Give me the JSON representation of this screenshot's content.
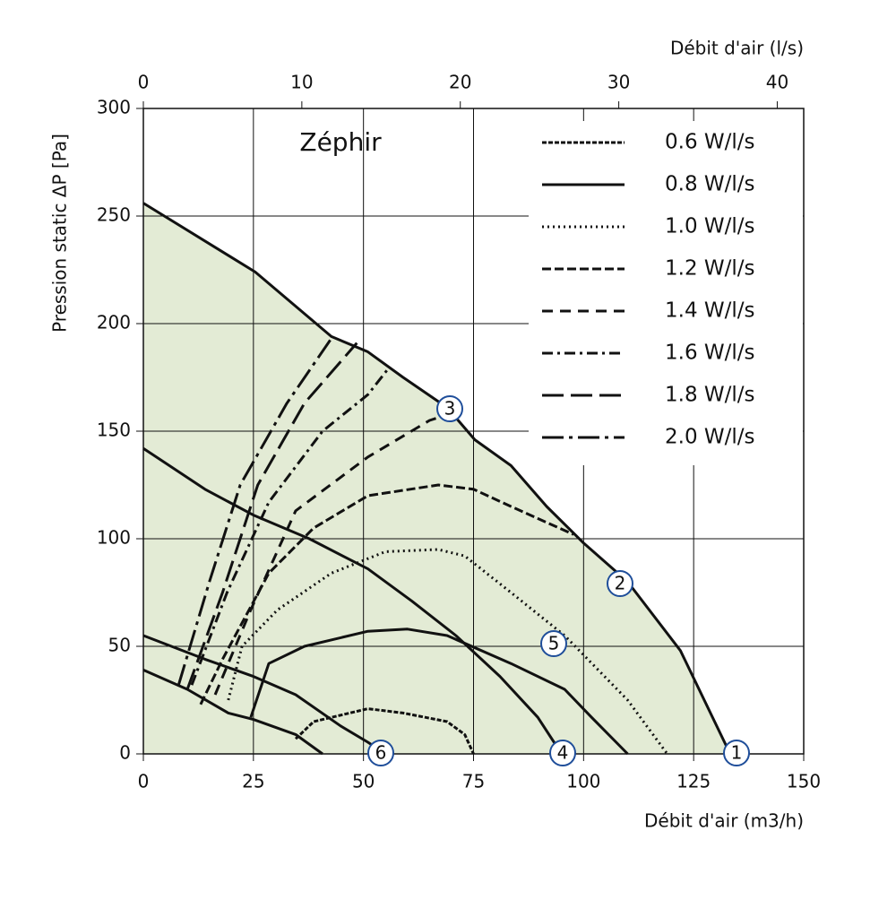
{
  "chart_data": {
    "type": "line",
    "title": "Zéphir",
    "xlabel": "Débit d'air (m3/h)",
    "x2label": "Débit d'air (l/s)",
    "ylabel": "Pression static  ΔP [Pa]",
    "xlim": [
      0,
      150
    ],
    "xticks": [
      0,
      25,
      50,
      75,
      100,
      125,
      150
    ],
    "x2lim": [
      0,
      41.67
    ],
    "x2ticks": [
      0,
      10,
      20,
      30,
      40
    ],
    "ylim": [
      0,
      300
    ],
    "yticks": [
      0,
      50,
      100,
      150,
      200,
      250,
      300
    ],
    "grid": true,
    "fill_color": "#e3ebd5",
    "legend": "upper right",
    "fan_curves": [
      {
        "color": "#111111",
        "x": [
          0,
          25.4,
          42.7,
          50.9,
          59,
          69,
          75.3,
          83.5,
          91.6,
          100,
          110,
          122,
          133.3
        ],
        "values": [
          256,
          224,
          194,
          187,
          175,
          161,
          146,
          134,
          115,
          98,
          80,
          48,
          0
        ]
      },
      {
        "color": "#111111",
        "x": [
          0,
          14,
          25,
          37.7,
          51,
          61,
          71,
          81,
          89.6,
          95
        ],
        "values": [
          142,
          123,
          111,
          100,
          86,
          71,
          55,
          36,
          17,
          0
        ]
      },
      {
        "color": "#111111",
        "x": [
          0,
          14,
          25,
          34.6,
          44.8,
          51,
          55
        ],
        "values": [
          55,
          44,
          36,
          27.5,
          13,
          5.4,
          0
        ]
      },
      {
        "color": "#111111",
        "x": [
          0,
          10,
          19.3,
          25,
          34.6,
          40.7
        ],
        "values": [
          39,
          30,
          19,
          16,
          9,
          0
        ]
      }
    ],
    "series": [
      {
        "name": "0.6 W/l/s",
        "color": "#111111",
        "dash": "5,2",
        "x": [
          34.6,
          38.7,
          51,
          59,
          69,
          73,
          75
        ],
        "values": [
          7,
          15,
          21,
          19,
          15,
          9,
          0
        ]
      },
      {
        "name": "0.8 W/l/s",
        "color": "#111111",
        "x": [
          24.4,
          28.5,
          36.6,
          51,
          60,
          69,
          83.5,
          95.7,
          101.8,
          110
        ],
        "values": [
          17,
          42,
          50,
          57,
          58,
          55,
          42,
          30,
          17,
          0
        ]
      },
      {
        "name": "1.0 W/l/s",
        "color": "#111111",
        "dash": "2,4",
        "x": [
          19.3,
          22.4,
          30.5,
          42.7,
          55,
          67,
          73,
          83.5,
          95.7,
          110,
          119
        ],
        "values": [
          25,
          50,
          67,
          84,
          94,
          95,
          92,
          75,
          55,
          25,
          0
        ]
      },
      {
        "name": "1.2 W/l/s",
        "color": "#111111",
        "dash": "10,4",
        "x": [
          13,
          18,
          28.5,
          38.7,
          51,
          67,
          75,
          83.5,
          97.7
        ],
        "values": [
          23,
          44,
          84,
          105,
          120,
          125,
          123,
          115,
          102
        ]
      },
      {
        "name": "1.4 W/l/s",
        "color": "#111111",
        "dash": "12,8",
        "x": [
          16.3,
          24.4,
          34.6,
          51,
          65,
          69.6
        ],
        "values": [
          27.5,
          67,
          113,
          138,
          155,
          158
        ]
      },
      {
        "name": "1.6 W/l/s",
        "color": "#111111",
        "dash": "12,5,3,5",
        "x": [
          11,
          19,
          28.5,
          40.7,
          51,
          56
        ],
        "values": [
          32,
          75,
          117,
          150,
          167,
          180
        ]
      },
      {
        "name": "1.8 W/l/s",
        "color": "#111111",
        "dash": "24,8",
        "x": [
          10,
          18,
          26,
          36.6,
          48.5
        ],
        "values": [
          30,
          75,
          125,
          163,
          191
        ]
      },
      {
        "name": "2.0 W/l/s",
        "color": "#111111",
        "dash": "24,6,4,6",
        "x": [
          8,
          15,
          22,
          32.6,
          43
        ],
        "values": [
          32,
          80,
          125,
          163,
          194
        ]
      }
    ],
    "annotations": [
      "1",
      "2",
      "3",
      "4",
      "5",
      "6"
    ]
  }
}
